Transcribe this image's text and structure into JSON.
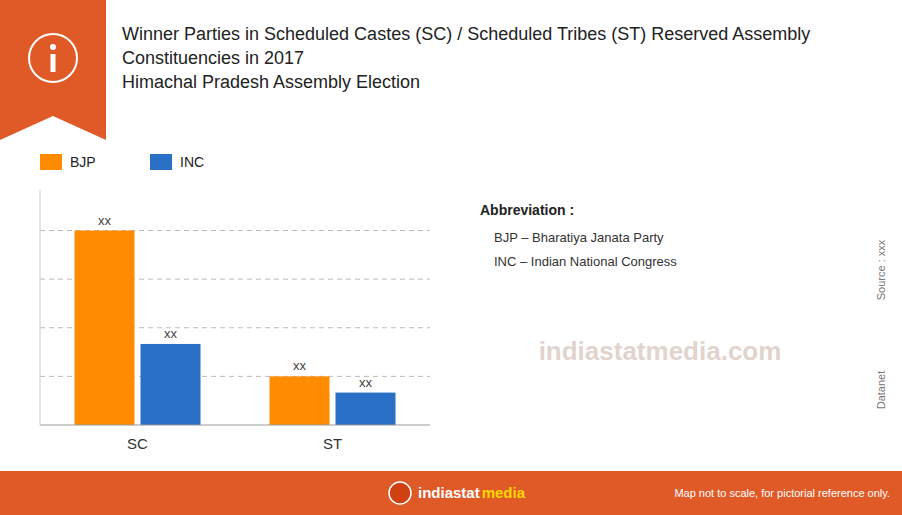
{
  "chart_data": {
    "type": "bar",
    "title": "Winner Parties in Scheduled Castes (SC) / Scheduled Tribes (ST) Reserved Assembly Constituencies in 2017",
    "subtitle": "Himachal Pradesh Assembly Election",
    "categories": [
      "SC",
      "ST"
    ],
    "series": [
      {
        "name": "BJP",
        "color": "#FF8C00",
        "values": [
          12,
          3
        ],
        "value_labels": [
          "xx",
          "xx"
        ]
      },
      {
        "name": "INC",
        "color": "#2970C6",
        "values": [
          5,
          2
        ],
        "value_labels": [
          "xx",
          "xx"
        ]
      }
    ],
    "ylim": [
      0,
      14.5
    ],
    "yticks": [
      3,
      6,
      9,
      12
    ],
    "grid": true,
    "tick_labels": "x",
    "data_labels": true,
    "legend": "top",
    "annotations": [
      "Abbreviation :",
      "BJP – Bharatiya Janata Party",
      "INC – Indian National Congress",
      "indiastatmedia.com",
      "indiastat",
      "media",
      "Map not to scale, for pictorial reference only.",
      "Source : xxx",
      "Datanet"
    ]
  }
}
